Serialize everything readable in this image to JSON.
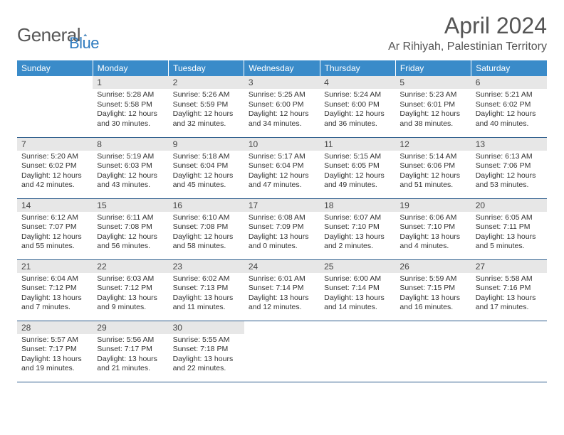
{
  "logo": {
    "text1": "General",
    "text2": "Blue"
  },
  "title": "April 2024",
  "subtitle": "Ar Rihiyah, Palestinian Territory",
  "colors": {
    "header_bg": "#3a8bc9",
    "header_text": "#ffffff",
    "daynum_bg": "#e7e7e7",
    "border": "#2a5a8a",
    "body_text": "#333333"
  },
  "weekdays": [
    "Sunday",
    "Monday",
    "Tuesday",
    "Wednesday",
    "Thursday",
    "Friday",
    "Saturday"
  ],
  "weeks": [
    [
      null,
      {
        "n": "1",
        "sr": "5:28 AM",
        "ss": "5:58 PM",
        "dl": "12 hours and 30 minutes."
      },
      {
        "n": "2",
        "sr": "5:26 AM",
        "ss": "5:59 PM",
        "dl": "12 hours and 32 minutes."
      },
      {
        "n": "3",
        "sr": "5:25 AM",
        "ss": "6:00 PM",
        "dl": "12 hours and 34 minutes."
      },
      {
        "n": "4",
        "sr": "5:24 AM",
        "ss": "6:00 PM",
        "dl": "12 hours and 36 minutes."
      },
      {
        "n": "5",
        "sr": "5:23 AM",
        "ss": "6:01 PM",
        "dl": "12 hours and 38 minutes."
      },
      {
        "n": "6",
        "sr": "5:21 AM",
        "ss": "6:02 PM",
        "dl": "12 hours and 40 minutes."
      }
    ],
    [
      {
        "n": "7",
        "sr": "5:20 AM",
        "ss": "6:02 PM",
        "dl": "12 hours and 42 minutes."
      },
      {
        "n": "8",
        "sr": "5:19 AM",
        "ss": "6:03 PM",
        "dl": "12 hours and 43 minutes."
      },
      {
        "n": "9",
        "sr": "5:18 AM",
        "ss": "6:04 PM",
        "dl": "12 hours and 45 minutes."
      },
      {
        "n": "10",
        "sr": "5:17 AM",
        "ss": "6:04 PM",
        "dl": "12 hours and 47 minutes."
      },
      {
        "n": "11",
        "sr": "5:15 AM",
        "ss": "6:05 PM",
        "dl": "12 hours and 49 minutes."
      },
      {
        "n": "12",
        "sr": "5:14 AM",
        "ss": "6:06 PM",
        "dl": "12 hours and 51 minutes."
      },
      {
        "n": "13",
        "sr": "6:13 AM",
        "ss": "7:06 PM",
        "dl": "12 hours and 53 minutes."
      }
    ],
    [
      {
        "n": "14",
        "sr": "6:12 AM",
        "ss": "7:07 PM",
        "dl": "12 hours and 55 minutes."
      },
      {
        "n": "15",
        "sr": "6:11 AM",
        "ss": "7:08 PM",
        "dl": "12 hours and 56 minutes."
      },
      {
        "n": "16",
        "sr": "6:10 AM",
        "ss": "7:08 PM",
        "dl": "12 hours and 58 minutes."
      },
      {
        "n": "17",
        "sr": "6:08 AM",
        "ss": "7:09 PM",
        "dl": "13 hours and 0 minutes."
      },
      {
        "n": "18",
        "sr": "6:07 AM",
        "ss": "7:10 PM",
        "dl": "13 hours and 2 minutes."
      },
      {
        "n": "19",
        "sr": "6:06 AM",
        "ss": "7:10 PM",
        "dl": "13 hours and 4 minutes."
      },
      {
        "n": "20",
        "sr": "6:05 AM",
        "ss": "7:11 PM",
        "dl": "13 hours and 5 minutes."
      }
    ],
    [
      {
        "n": "21",
        "sr": "6:04 AM",
        "ss": "7:12 PM",
        "dl": "13 hours and 7 minutes."
      },
      {
        "n": "22",
        "sr": "6:03 AM",
        "ss": "7:12 PM",
        "dl": "13 hours and 9 minutes."
      },
      {
        "n": "23",
        "sr": "6:02 AM",
        "ss": "7:13 PM",
        "dl": "13 hours and 11 minutes."
      },
      {
        "n": "24",
        "sr": "6:01 AM",
        "ss": "7:14 PM",
        "dl": "13 hours and 12 minutes."
      },
      {
        "n": "25",
        "sr": "6:00 AM",
        "ss": "7:14 PM",
        "dl": "13 hours and 14 minutes."
      },
      {
        "n": "26",
        "sr": "5:59 AM",
        "ss": "7:15 PM",
        "dl": "13 hours and 16 minutes."
      },
      {
        "n": "27",
        "sr": "5:58 AM",
        "ss": "7:16 PM",
        "dl": "13 hours and 17 minutes."
      }
    ],
    [
      {
        "n": "28",
        "sr": "5:57 AM",
        "ss": "7:17 PM",
        "dl": "13 hours and 19 minutes."
      },
      {
        "n": "29",
        "sr": "5:56 AM",
        "ss": "7:17 PM",
        "dl": "13 hours and 21 minutes."
      },
      {
        "n": "30",
        "sr": "5:55 AM",
        "ss": "7:18 PM",
        "dl": "13 hours and 22 minutes."
      },
      null,
      null,
      null,
      null
    ]
  ],
  "labels": {
    "sunrise": "Sunrise: ",
    "sunset": "Sunset: ",
    "daylight": "Daylight: "
  }
}
